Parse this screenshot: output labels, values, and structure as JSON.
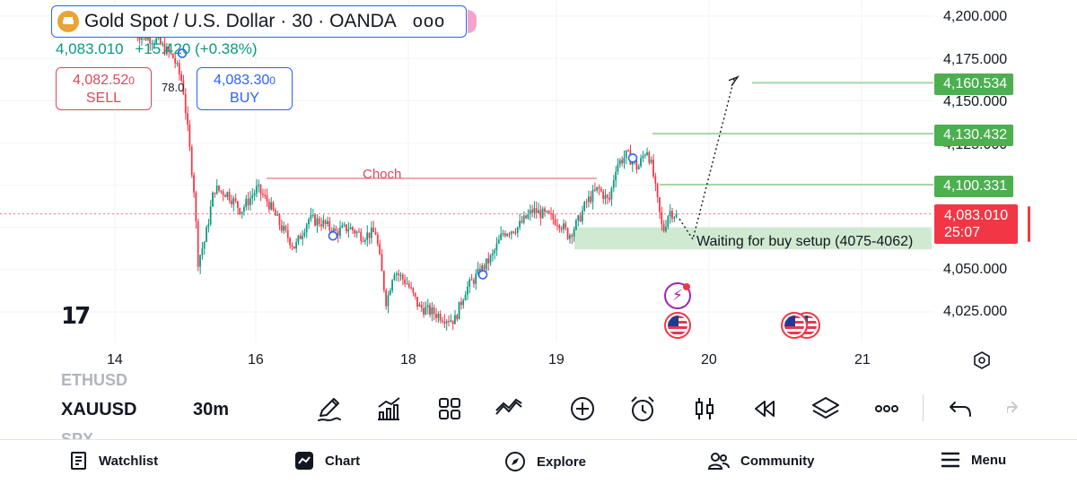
{
  "instrument": {
    "title": "Gold Spot / U.S. Dollar · 30 · OANDA",
    "more": "ooo",
    "last_price": "4,083.010",
    "change": "+15.420 (+0.38%)"
  },
  "trade": {
    "sell_price": "4,082.52",
    "sell_sup": "0",
    "sell_label": "SELL",
    "buy_price": "4,083.30",
    "buy_sup": "0",
    "buy_label": "BUY"
  },
  "fib_label": "78.0",
  "annotations": {
    "choch": "Choch",
    "waiting": "Waiting for buy setup (4075-4062)"
  },
  "price_axis": {
    "labels": [
      "4,200.000",
      "4,175.000",
      "4,150.000",
      "4,125.000",
      "4,050.000",
      "4,025.000"
    ],
    "tags": [
      "4,160.534",
      "4,130.432",
      "4,100.331"
    ],
    "current_price": "4,083.010",
    "countdown": "25:07"
  },
  "time_axis": {
    "labels": [
      "14",
      "16",
      "18",
      "19",
      "20",
      "21"
    ]
  },
  "chart_data": {
    "type": "candlestick",
    "symbol": "XAUUSD",
    "interval": "30m",
    "ylim": [
      4008,
      4210
    ],
    "x_categories": [
      "14",
      "16",
      "18",
      "19",
      "20",
      "21"
    ],
    "levels": [
      {
        "name": "Choch",
        "price": 4104,
        "color": "#f7a6b0"
      },
      {
        "price": 4160.534,
        "color": "#4caf50"
      },
      {
        "price": 4130.432,
        "color": "#4caf50"
      },
      {
        "price": 4100.331,
        "color": "#4caf50"
      },
      {
        "price": 4083.01,
        "color": "#f23645"
      }
    ],
    "zone": {
      "from": 4062,
      "to": 4075,
      "color": "#c8e6c9"
    },
    "path_points": [
      {
        "x": "after 19",
        "y": 4080
      },
      {
        "x": "~19.7",
        "y": 4068
      },
      {
        "x": "~20.1",
        "y": 4163
      }
    ],
    "candle_count": 260,
    "up_color": "#089981",
    "down_color": "#f23645"
  },
  "toolbar": {
    "symbol_above": "ETHUSD",
    "symbol": "XAUUSD",
    "symbol_below": "SPX",
    "interval": "30m"
  },
  "nav": {
    "watchlist": "Watchlist",
    "chart": "Chart",
    "explore": "Explore",
    "community": "Community",
    "menu": "Menu"
  },
  "colors": {
    "up": "#089981",
    "down": "#f23645",
    "accent": "#2962ff",
    "tag_green": "#4caf50"
  }
}
